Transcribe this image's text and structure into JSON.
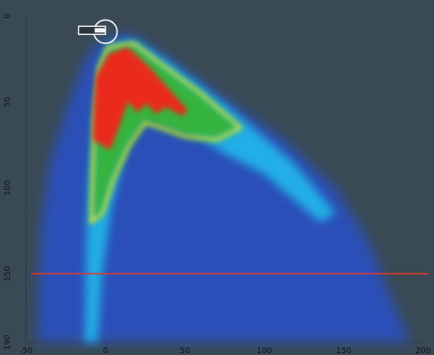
{
  "chart_data": {
    "type": "heatmap",
    "title": "",
    "xlabel": "",
    "ylabel": "",
    "xlim": [
      -50,
      200
    ],
    "ylim": [
      0,
      190
    ],
    "y_inverted": true,
    "x_ticks": [
      "-50",
      "0",
      "50",
      "100",
      "150",
      "200"
    ],
    "y_ticks": [
      "0",
      "50",
      "100",
      "150",
      "190"
    ],
    "x_tick_values": [
      -50,
      0,
      50,
      100,
      150,
      200
    ],
    "y_tick_values": [
      0,
      50,
      100,
      150,
      190
    ],
    "colorscale": [
      "#2a4fb8",
      "#22aee6",
      "#34b43c",
      "#e8e832",
      "#ea2a1a"
    ],
    "series": [
      {
        "polygon": [
          [
            -43,
            190
          ],
          [
            -42,
            150
          ],
          [
            -40,
            115
          ],
          [
            -35,
            85
          ],
          [
            -25,
            55
          ],
          [
            -15,
            30
          ],
          [
            -8,
            18
          ],
          [
            10,
            10
          ],
          [
            18,
            12
          ],
          [
            40,
            25
          ],
          [
            70,
            45
          ],
          [
            110,
            70
          ],
          [
            145,
            100
          ],
          [
            165,
            130
          ],
          [
            178,
            160
          ],
          [
            192,
            190
          ]
        ]
      },
      {
        "polygon": [
          [
            -13,
            190
          ],
          [
            -12,
            130
          ],
          [
            -10,
            95
          ],
          [
            -6,
            55
          ],
          [
            -2,
            25
          ],
          [
            2,
            16
          ],
          [
            18,
            14
          ],
          [
            40,
            27
          ],
          [
            80,
            55
          ],
          [
            118,
            85
          ],
          [
            145,
            115
          ],
          [
            135,
            120
          ],
          [
            100,
            92
          ],
          [
            75,
            80
          ],
          [
            55,
            68
          ],
          [
            35,
            60
          ],
          [
            25,
            55
          ],
          [
            12,
            78
          ],
          [
            4,
            110
          ],
          [
            -2,
            150
          ],
          [
            -5,
            190
          ]
        ]
      },
      {
        "polygon": [
          [
            -9,
            120
          ],
          [
            -8,
            90
          ],
          [
            -7,
            60
          ],
          [
            -4,
            30
          ],
          [
            2,
            18
          ],
          [
            18,
            16
          ],
          [
            35,
            28
          ],
          [
            60,
            45
          ],
          [
            85,
            65
          ],
          [
            70,
            72
          ],
          [
            50,
            70
          ],
          [
            35,
            65
          ],
          [
            25,
            62
          ],
          [
            15,
            75
          ],
          [
            5,
            95
          ],
          [
            -2,
            115
          ]
        ]
      },
      {
        "polygon": [
          [
            -8,
            72
          ],
          [
            -7,
            50
          ],
          [
            -6,
            35
          ],
          [
            2,
            22
          ],
          [
            14,
            18
          ],
          [
            28,
            30
          ],
          [
            52,
            55
          ],
          [
            48,
            58
          ],
          [
            38,
            53
          ],
          [
            32,
            57
          ],
          [
            26,
            51
          ],
          [
            20,
            56
          ],
          [
            14,
            50
          ],
          [
            8,
            66
          ],
          [
            3,
            78
          ]
        ]
      }
    ],
    "reference_line_y": 150,
    "marker": {
      "x": 0,
      "y": 8,
      "shape": "circle-with-bar"
    }
  }
}
